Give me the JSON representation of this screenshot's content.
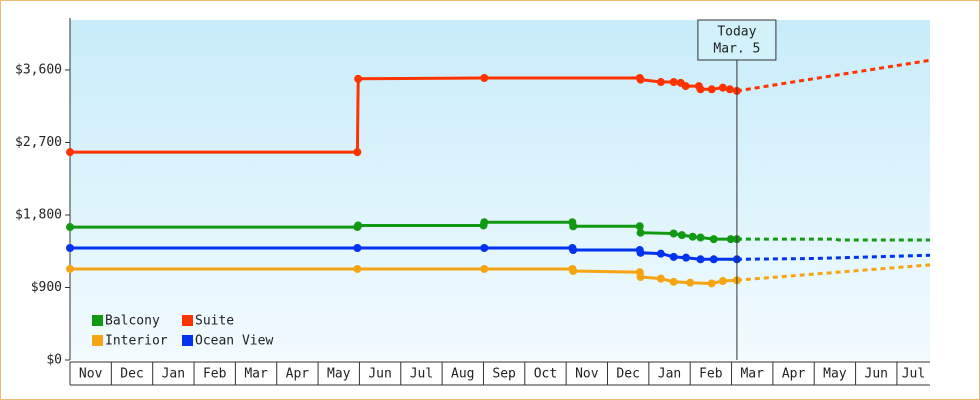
{
  "chart_data": {
    "type": "line",
    "ylim": [
      0,
      4220
    ],
    "yticks": [
      {
        "value": 0,
        "label": "$0"
      },
      {
        "value": 900,
        "label": "$900"
      },
      {
        "value": 1800,
        "label": "$1,800"
      },
      {
        "value": 2700,
        "label": "$2,700"
      },
      {
        "value": 3600,
        "label": "$3,600"
      }
    ],
    "xlim": [
      0,
      20.8
    ],
    "xticks": [
      {
        "value": 0,
        "label": "Nov"
      },
      {
        "value": 1,
        "label": "Dec"
      },
      {
        "value": 2,
        "label": "Jan"
      },
      {
        "value": 3,
        "label": "Feb"
      },
      {
        "value": 4,
        "label": "Mar"
      },
      {
        "value": 5,
        "label": "Apr"
      },
      {
        "value": 6,
        "label": "May"
      },
      {
        "value": 7,
        "label": "Jun"
      },
      {
        "value": 8,
        "label": "Jul"
      },
      {
        "value": 9,
        "label": "Aug"
      },
      {
        "value": 10,
        "label": "Sep"
      },
      {
        "value": 11,
        "label": "Oct"
      },
      {
        "value": 12,
        "label": "Nov"
      },
      {
        "value": 13,
        "label": "Dec"
      },
      {
        "value": 14,
        "label": "Jan"
      },
      {
        "value": 15,
        "label": "Feb"
      },
      {
        "value": 16,
        "label": "Mar"
      },
      {
        "value": 17,
        "label": "Apr"
      },
      {
        "value": 18,
        "label": "May"
      },
      {
        "value": 19,
        "label": "Jun"
      },
      {
        "value": 20,
        "label": "Jul"
      }
    ],
    "annotation": {
      "x": 16.13,
      "lines": [
        "Today",
        "Mar. 5"
      ]
    },
    "legend": "bottom-left",
    "series": [
      {
        "name": "Balcony",
        "color": "#119911",
        "x": [
          0,
          6.95,
          6.97,
          10.0,
          10.02,
          12.15,
          12.17,
          13.78,
          13.8,
          14.6,
          14.8,
          15.06,
          15.25,
          15.57,
          15.98,
          16.13
        ],
        "values": [
          1650,
          1650,
          1670,
          1670,
          1710,
          1710,
          1660,
          1660,
          1580,
          1570,
          1550,
          1530,
          1520,
          1500,
          1500,
          1500
        ],
        "projection_x": [
          16.13,
          18.5,
          18.6,
          20.8
        ],
        "projection_values": [
          1500,
          1500,
          1490,
          1490
        ]
      },
      {
        "name": "Suite",
        "color": "#ff3300",
        "x": [
          0,
          6.95,
          6.97,
          10.02,
          13.78,
          13.8,
          14.29,
          14.6,
          14.77,
          14.89,
          15.21,
          15.25,
          15.52,
          15.79,
          15.96,
          16.13
        ],
        "values": [
          2580,
          2580,
          3490,
          3500,
          3500,
          3480,
          3450,
          3450,
          3440,
          3400,
          3400,
          3360,
          3360,
          3380,
          3360,
          3340
        ],
        "projection_x": [
          16.13,
          20.8
        ],
        "projection_values": [
          3340,
          3720
        ]
      },
      {
        "name": "Interior",
        "color": "#f5a511",
        "x": [
          0,
          6.95,
          10.02,
          12.15,
          12.17,
          13.78,
          13.8,
          14.29,
          14.6,
          15.0,
          15.52,
          15.79,
          16.13
        ],
        "values": [
          1130,
          1130,
          1130,
          1130,
          1105,
          1090,
          1030,
          1010,
          970,
          960,
          950,
          980,
          990
        ],
        "projection_x": [
          16.13,
          20.8
        ],
        "projection_values": [
          990,
          1180
        ]
      },
      {
        "name": "Ocean View",
        "color": "#0033ee",
        "x": [
          0,
          6.95,
          10.02,
          12.15,
          12.17,
          13.78,
          13.8,
          14.29,
          14.6,
          14.9,
          15.25,
          15.57,
          16.13
        ],
        "values": [
          1390,
          1390,
          1390,
          1390,
          1365,
          1365,
          1330,
          1320,
          1280,
          1270,
          1250,
          1250,
          1250
        ],
        "projection_x": [
          16.13,
          18.0,
          20.8
        ],
        "projection_values": [
          1250,
          1260,
          1300
        ]
      }
    ]
  }
}
